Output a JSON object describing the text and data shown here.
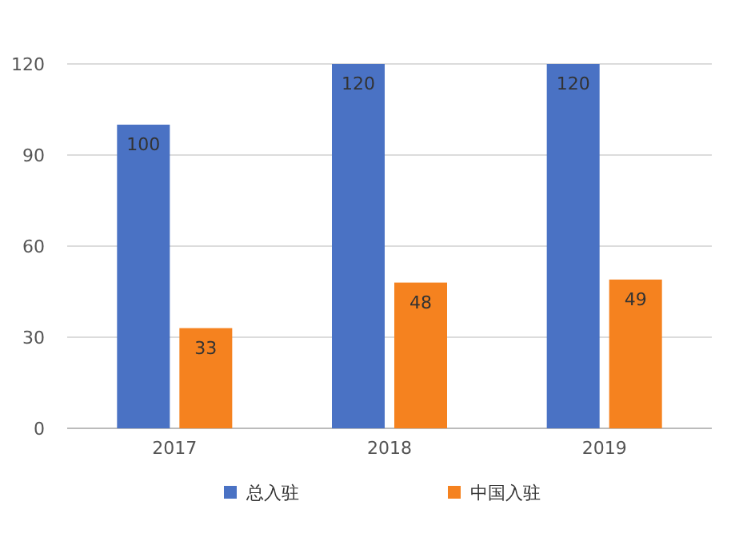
{
  "chart_data": {
    "type": "bar",
    "categories": [
      "2017",
      "2018",
      "2019"
    ],
    "series": [
      {
        "name": "总入驻",
        "color": "#4a72c4",
        "values": [
          100,
          120,
          120
        ]
      },
      {
        "name": "中国入驻",
        "color": "#f5821f",
        "values": [
          33,
          48,
          49
        ]
      }
    ],
    "ylim": [
      0,
      120
    ],
    "yticks": [
      0,
      30,
      60,
      90,
      120
    ],
    "grid": "y",
    "legend": "bottom",
    "data_labels": true
  }
}
